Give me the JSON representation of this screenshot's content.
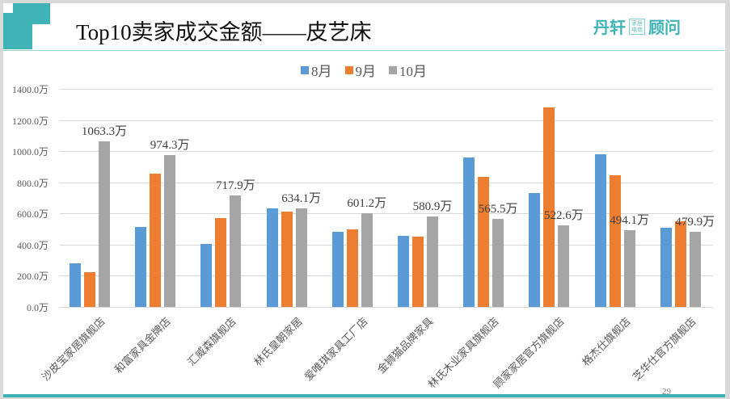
{
  "slide": {
    "title": "Top10卖家成交金额——皮艺床",
    "logo": {
      "left": "丹轩",
      "box_top": "家居",
      "box_bottom": "电商",
      "right": "顾问"
    },
    "page_number": "29"
  },
  "colors": {
    "aug": "#5b9bd5",
    "sep": "#ed7d31",
    "oct": "#a5a5a5",
    "accent": "#3fb3b5"
  },
  "legend": [
    {
      "label": "8月",
      "color": "#5b9bd5"
    },
    {
      "label": "9月",
      "color": "#ed7d31"
    },
    {
      "label": "10月",
      "color": "#a5a5a5"
    }
  ],
  "chart_data": {
    "type": "bar",
    "title": "Top10卖家成交金额——皮艺床",
    "xlabel": "",
    "ylabel": "",
    "ylim": [
      0,
      1400
    ],
    "yticks": [
      "0.0万",
      "200.0万",
      "400.0万",
      "600.0万",
      "800.0万",
      "1000.0万",
      "1200.0万",
      "1400.0万"
    ],
    "grid": true,
    "legend_position": "top",
    "categories": [
      "沙皮宝家居旗舰店",
      "和富家具金牌店",
      "汇威森旗舰店",
      "林氏皇朝家居",
      "爱唯琪家具工厂店",
      "金狮猫品牌家具",
      "林氏木业家具旗舰店",
      "顾家家居官方旗舰店",
      "格杰仕旗舰店",
      "芝华仕官方旗舰店"
    ],
    "series": [
      {
        "name": "8月",
        "values": [
          280,
          513,
          405,
          632,
          482,
          456,
          958,
          730,
          979,
          508
        ]
      },
      {
        "name": "9月",
        "values": [
          223,
          855,
          570,
          612,
          497,
          451,
          834,
          1280,
          845,
          549
        ]
      },
      {
        "name": "10月",
        "values": [
          1063.3,
          974.3,
          717.9,
          634.1,
          601.2,
          580.9,
          565.5,
          522.6,
          494.1,
          479.9
        ]
      }
    ],
    "data_labels": [
      "1063.3万",
      "974.3万",
      "717.9万",
      "634.1万",
      "601.2万",
      "580.9万",
      "565.5万",
      "522.6万",
      "494.1万",
      "479.9万"
    ],
    "unit": "万"
  }
}
